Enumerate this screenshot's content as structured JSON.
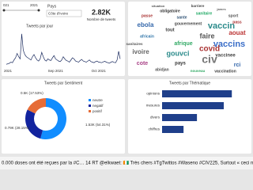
{
  "filters": {
    "date_from": "021",
    "date_to": "2021",
    "country_label": "Pays",
    "country_value": "Côte d'Ivoire"
  },
  "card": {
    "value": "2.82K",
    "label": "Nombre de tweets"
  },
  "wordcloud": {
    "words": [
      "situation",
      "barriere",
      "james",
      "obligatoire",
      "sanitaire",
      "passe",
      "sport",
      "sante",
      "ebola",
      "gouvernement",
      "vaccin",
      "tout",
      "aouat",
      "faire",
      "africain",
      "vaccins",
      "afrique",
      "covid",
      "gouvci",
      "ivoire",
      "civ",
      "cote",
      "pays",
      "vaccinee",
      "abidjan",
      "rci",
      "nouveau",
      "vaccination",
      "sanitaires",
      "pass"
    ]
  },
  "chart_data": [
    {
      "type": "line",
      "title": "Tweets par jour",
      "color": "#1a2a5e",
      "ylim": [
        0,
        320
      ],
      "categories": [
        null,
        "2021",
        null,
        null,
        null,
        null,
        null,
        null,
        null,
        null,
        null,
        null,
        null,
        null,
        null,
        null,
        null,
        null,
        null,
        null,
        null,
        null,
        null,
        null,
        null,
        null,
        null,
        null,
        null,
        null,
        null,
        null,
        "Sep 2021",
        null,
        null,
        null,
        null,
        null,
        null,
        null,
        null,
        null,
        null,
        null,
        null,
        null,
        null,
        null,
        null,
        null,
        null,
        null,
        null,
        null,
        null,
        null,
        null,
        null,
        null,
        null,
        "Oct 2021",
        null,
        null,
        null,
        null,
        null,
        null,
        null,
        null,
        null,
        null,
        null,
        null,
        null,
        null
      ],
      "values": [
        20,
        25,
        30,
        40,
        35,
        60,
        80,
        120,
        90,
        70,
        300,
        150,
        110,
        90,
        80,
        70,
        60,
        90,
        110,
        80,
        60,
        50,
        70,
        130,
        90,
        60,
        50,
        70,
        60,
        55,
        80,
        100,
        70,
        60,
        50,
        45,
        60,
        90,
        70,
        55,
        50,
        40,
        60,
        80,
        70,
        50,
        45,
        40,
        55,
        65,
        50,
        45,
        40,
        50,
        60,
        45,
        40,
        35,
        45,
        50,
        40,
        38,
        35,
        42,
        48,
        40,
        35,
        30,
        40,
        45,
        38,
        35,
        60,
        140,
        70
      ]
    },
    {
      "type": "pie",
      "title": "Tweets par Sentiment",
      "categories": [
        "neutre",
        "negatif",
        "positif"
      ],
      "values": [
        1530,
        790,
        500
      ],
      "value_labels": [
        "1.53K (54.31%)",
        "0.79K (28.15%)",
        "0.5K (17.53%)"
      ],
      "colors": [
        "#118dff",
        "#12239e",
        "#e66c37"
      ]
    },
    {
      "type": "barh",
      "title": "Tweets par Thématique",
      "color": "#1f3f8a",
      "xlim": [
        0,
        1400
      ],
      "categories": [
        "opinions",
        "mesures",
        "divers",
        "chiffres"
      ],
      "values": [
        1300,
        1150,
        650,
        400
      ]
    }
  ],
  "ticker": "0.000 doses ont été reçues par la #C… 14     RT @elkwaet: 🇨🇮 Très chers #TgTwittos #Waseno #CIV225, Surtout « ceci n'est pas un exe"
}
